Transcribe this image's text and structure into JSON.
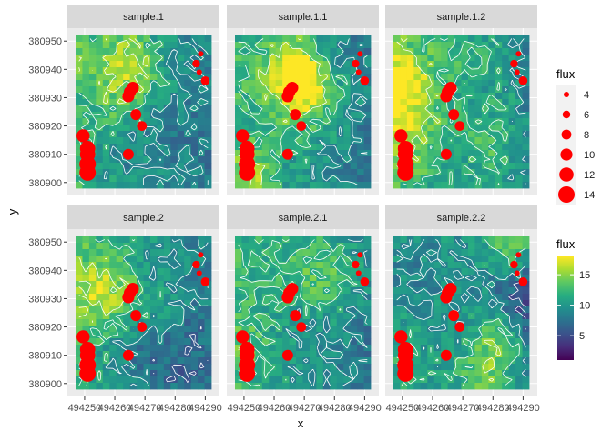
{
  "chart_data": {
    "type": "heatmap",
    "subtype": "faceted raster with contours and scaled points",
    "xlabel": "x",
    "ylabel": "y",
    "x_ticks": [
      "494250",
      "494260",
      "494270",
      "494280",
      "494290"
    ],
    "y_ticks": [
      "380900",
      "380910",
      "380920",
      "380930",
      "380940",
      "380950"
    ],
    "xlim": [
      494247,
      494292
    ],
    "ylim": [
      380898,
      380952
    ],
    "facets": [
      "sample.1",
      "sample.1.1",
      "sample.1.2",
      "sample.2",
      "sample.2.1",
      "sample.2.2"
    ],
    "facet_layout": {
      "rows": 2,
      "cols": 3
    },
    "raster_colormap": "viridis",
    "fill_legend": {
      "title": "flux",
      "ticks": [
        "5",
        "10",
        "15"
      ],
      "range": [
        1,
        18
      ]
    },
    "size_legend": {
      "title": "flux",
      "labels": [
        "4",
        "6",
        "8",
        "10",
        "12",
        "14"
      ],
      "values": [
        4,
        6,
        8,
        10,
        12,
        14
      ]
    },
    "point_color": "#ff0000",
    "contour_color": "#ffffff",
    "panel_background": "#ebebeb",
    "strip_background": "#d9d9d9",
    "points": [
      {
        "x": 494288.5,
        "y": 380945.5,
        "flux": 4
      },
      {
        "x": 494287,
        "y": 380942,
        "flux": 6
      },
      {
        "x": 494288,
        "y": 380939,
        "flux": 4
      },
      {
        "x": 494290,
        "y": 380936,
        "flux": 7
      },
      {
        "x": 494266,
        "y": 380933.5,
        "flux": 10
      },
      {
        "x": 494265,
        "y": 380932,
        "flux": 10
      },
      {
        "x": 494264.5,
        "y": 380930.5,
        "flux": 10
      },
      {
        "x": 494267,
        "y": 380924,
        "flux": 9
      },
      {
        "x": 494269,
        "y": 380920,
        "flux": 8
      },
      {
        "x": 494249.5,
        "y": 380916.5,
        "flux": 11
      },
      {
        "x": 494251,
        "y": 380912,
        "flux": 13
      },
      {
        "x": 494251,
        "y": 380910,
        "flux": 13
      },
      {
        "x": 494264.5,
        "y": 380910,
        "flux": 9
      },
      {
        "x": 494251,
        "y": 380906.5,
        "flux": 14
      },
      {
        "x": 494251,
        "y": 380903.5,
        "flux": 14
      }
    ]
  }
}
